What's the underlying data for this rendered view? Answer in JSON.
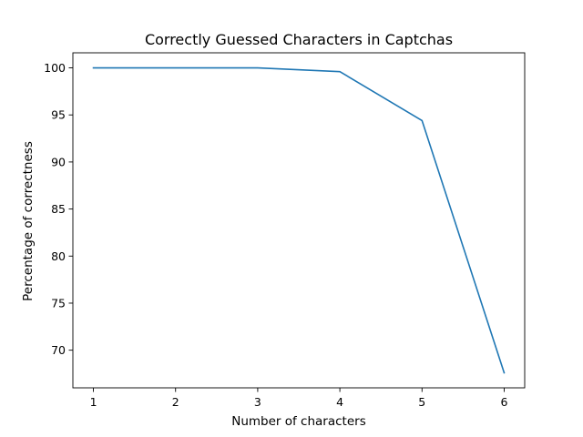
{
  "chart_data": {
    "type": "line",
    "title": "Correctly Guessed Characters in Captchas",
    "xlabel": "Number of characters",
    "ylabel": "Percentage of correctness",
    "x": [
      1,
      2,
      3,
      4,
      5,
      6
    ],
    "series": [
      {
        "values": [
          100.0,
          100.0,
          100.0,
          99.6,
          94.4,
          67.6
        ],
        "color": "#1f77b4"
      }
    ],
    "xlim": [
      0.75,
      6.25
    ],
    "ylim": [
      66.0,
      101.6
    ],
    "xticks": [
      1,
      2,
      3,
      4,
      5,
      6
    ],
    "yticks": [
      70,
      75,
      80,
      85,
      90,
      95,
      100
    ],
    "grid": false,
    "legend": "none"
  }
}
